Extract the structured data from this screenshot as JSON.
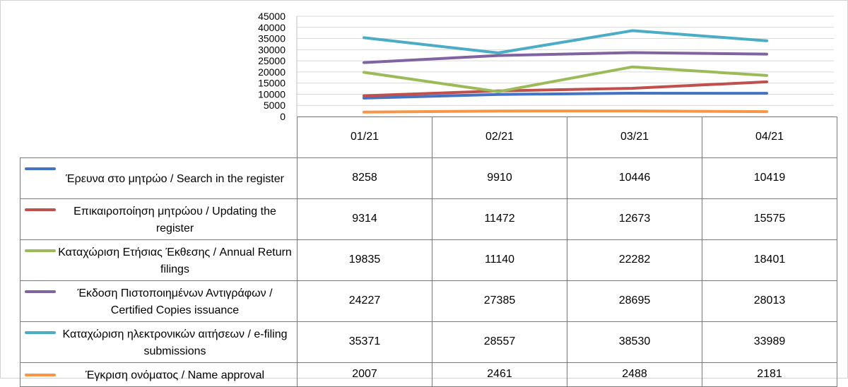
{
  "chart_data": {
    "type": "line",
    "categories": [
      "01/21",
      "02/21",
      "03/21",
      "04/21"
    ],
    "ylim": [
      0,
      45000
    ],
    "yticks": [
      0,
      5000,
      10000,
      15000,
      20000,
      25000,
      30000,
      35000,
      40000,
      45000
    ],
    "grid": true,
    "legend": "data-table-below",
    "series": [
      {
        "name": "Έρευνα στο μητρώο / Search in the register",
        "color": "#4472c4",
        "values": [
          8258,
          9910,
          10446,
          10419
        ]
      },
      {
        "name": "Επικαιροποίηση μητρώου / Updating the register",
        "color": "#c0504d",
        "values": [
          9314,
          11472,
          12673,
          15575
        ]
      },
      {
        "name": "Καταχώριση Ετήσιας Έκθεσης / Annual Return filings",
        "color": "#9bbb59",
        "values": [
          19835,
          11140,
          22282,
          18401
        ]
      },
      {
        "name": "Έκδοση Πιστοποιημένων Αντιγράφων / Certified Copies issuance",
        "color": "#8064a2",
        "values": [
          24227,
          27385,
          28695,
          28013
        ]
      },
      {
        "name": "Καταχώριση ηλεκτρονικών αιτήσεων / e-filing submissions",
        "color": "#4bacc6",
        "values": [
          35371,
          28557,
          38530,
          33989
        ]
      },
      {
        "name": "Έγκριση ονόματος / Name approval",
        "color": "#f79646",
        "values": [
          2007,
          2461,
          2488,
          2181
        ]
      }
    ]
  }
}
